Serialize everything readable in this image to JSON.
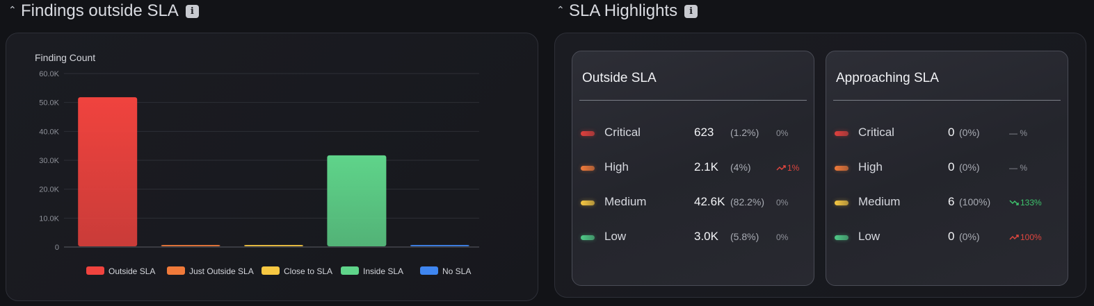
{
  "left_section": {
    "title": "Findings outside SLA",
    "info_icon": "info-icon"
  },
  "right_section": {
    "title": "SLA Highlights",
    "info_icon": "info-icon"
  },
  "chart_data": {
    "type": "bar",
    "ylabel": "Finding Count",
    "ylim": [
      0,
      60000
    ],
    "yticks": [
      {
        "value": 0,
        "label": "0"
      },
      {
        "value": 10000,
        "label": "10.0K"
      },
      {
        "value": 20000,
        "label": "20.0K"
      },
      {
        "value": 30000,
        "label": "30.0K"
      },
      {
        "value": 40000,
        "label": "40.0K"
      },
      {
        "value": 50000,
        "label": "50.0K"
      },
      {
        "value": 60000,
        "label": "60.0K"
      }
    ],
    "categories": [
      "Outside SLA",
      "Just Outside SLA",
      "Close to SLA",
      "Inside SLA",
      "No SLA"
    ],
    "values": [
      51800,
      600,
      500,
      31700,
      500
    ],
    "colors": [
      "#f0433e",
      "#f07a3a",
      "#f7c842",
      "#5fd48a",
      "#3f86f0"
    ],
    "legend": {
      "position": "bottom"
    },
    "grid": true
  },
  "cards": [
    {
      "title": "Outside SLA",
      "rows": [
        {
          "label": "Critical",
          "color": "#e0403d",
          "count": "623",
          "pct": "(1.2%)",
          "trend": "0%",
          "dir": "flat"
        },
        {
          "label": "High",
          "color": "#f07a3a",
          "count": "2.1K",
          "pct": "(4%)",
          "trend": "1%",
          "dir": "up"
        },
        {
          "label": "Medium",
          "color": "#f7c842",
          "count": "42.6K",
          "pct": "(82.2%)",
          "trend": "0%",
          "dir": "flat"
        },
        {
          "label": "Low",
          "color": "#4fc987",
          "count": "3.0K",
          "pct": "(5.8%)",
          "trend": "0%",
          "dir": "flat"
        }
      ]
    },
    {
      "title": "Approaching SLA",
      "rows": [
        {
          "label": "Critical",
          "color": "#e0403d",
          "count": "0",
          "pct": "(0%)",
          "trend": "— %",
          "dir": "flat"
        },
        {
          "label": "High",
          "color": "#f07a3a",
          "count": "0",
          "pct": "(0%)",
          "trend": "— %",
          "dir": "flat"
        },
        {
          "label": "Medium",
          "color": "#f7c842",
          "count": "6",
          "pct": "(100%)",
          "trend": "133%",
          "dir": "down"
        },
        {
          "label": "Low",
          "color": "#4fc987",
          "count": "0",
          "pct": "(0%)",
          "trend": "100%",
          "dir": "up"
        }
      ]
    }
  ]
}
